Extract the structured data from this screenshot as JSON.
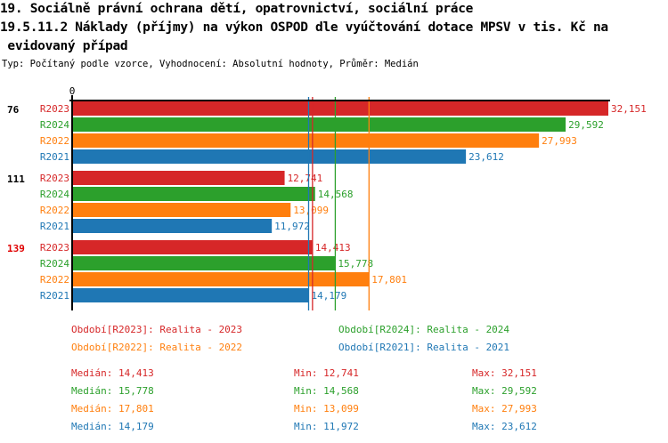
{
  "title_lines": [
    "19. Sociálně právní ochrana dětí, opatrovnictví, sociální práce",
    "19.5.11.2 Náklady (příjmy) na výkon OSPOD dle vyúčtování dotace MPSV v tis. Kč na",
    " evidovaný případ"
  ],
  "subtitle": "Typ: Počítaný podle vzorce, Vyhodnocení: Absolutní hodnoty, Průměr: Medián",
  "colors": {
    "R2023": "#d62728",
    "R2024": "#2ca02c",
    "R2022": "#ff7f0e",
    "R2021": "#1f77b4"
  },
  "chart_data": {
    "type": "bar",
    "orientation": "horizontal",
    "xlim": [
      0,
      32151
    ],
    "x_tick_labels": [
      "0"
    ],
    "groups": [
      {
        "label": "76",
        "highlight": false,
        "bars": [
          {
            "series": "R2023",
            "value": 32151,
            "label": "32,151"
          },
          {
            "series": "R2024",
            "value": 29592,
            "label": "29,592"
          },
          {
            "series": "R2022",
            "value": 27993,
            "label": "27,993"
          },
          {
            "series": "R2021",
            "value": 23612,
            "label": "23,612"
          }
        ]
      },
      {
        "label": "111",
        "highlight": false,
        "bars": [
          {
            "series": "R2023",
            "value": 12741,
            "label": "12,741"
          },
          {
            "series": "R2024",
            "value": 14568,
            "label": "14,568"
          },
          {
            "series": "R2022",
            "value": 13099,
            "label": "13,099"
          },
          {
            "series": "R2021",
            "value": 11972,
            "label": "11,972"
          }
        ]
      },
      {
        "label": "139",
        "highlight": true,
        "bars": [
          {
            "series": "R2023",
            "value": 14413,
            "label": "14,413"
          },
          {
            "series": "R2024",
            "value": 15778,
            "label": "15,778"
          },
          {
            "series": "R2022",
            "value": 17801,
            "label": "17,801"
          },
          {
            "series": "R2021",
            "value": 14179,
            "label": "14,179"
          }
        ]
      }
    ],
    "median_lines": [
      {
        "series": "R2023",
        "value": 14413
      },
      {
        "series": "R2024",
        "value": 15778
      },
      {
        "series": "R2022",
        "value": 17801
      },
      {
        "series": "R2021",
        "value": 14179
      }
    ],
    "legend": [
      {
        "series": "R2023",
        "text": "Období[R2023]: Realita - 2023"
      },
      {
        "series": "R2024",
        "text": "Období[R2024]: Realita - 2024"
      },
      {
        "series": "R2022",
        "text": "Období[R2022]: Realita - 2022"
      },
      {
        "series": "R2021",
        "text": "Období[R2021]: Realita - 2021"
      }
    ],
    "stats": [
      {
        "series": "R2023",
        "median": "Medián: 14,413",
        "min": "Min: 12,741",
        "max": "Max: 32,151"
      },
      {
        "series": "R2024",
        "median": "Medián: 15,778",
        "min": "Min: 14,568",
        "max": "Max: 29,592"
      },
      {
        "series": "R2022",
        "median": "Medián: 17,801",
        "min": "Min: 13,099",
        "max": "Max: 27,993"
      },
      {
        "series": "R2021",
        "median": "Medián: 14,179",
        "min": "Min: 11,972",
        "max": "Max: 23,612"
      }
    ]
  }
}
